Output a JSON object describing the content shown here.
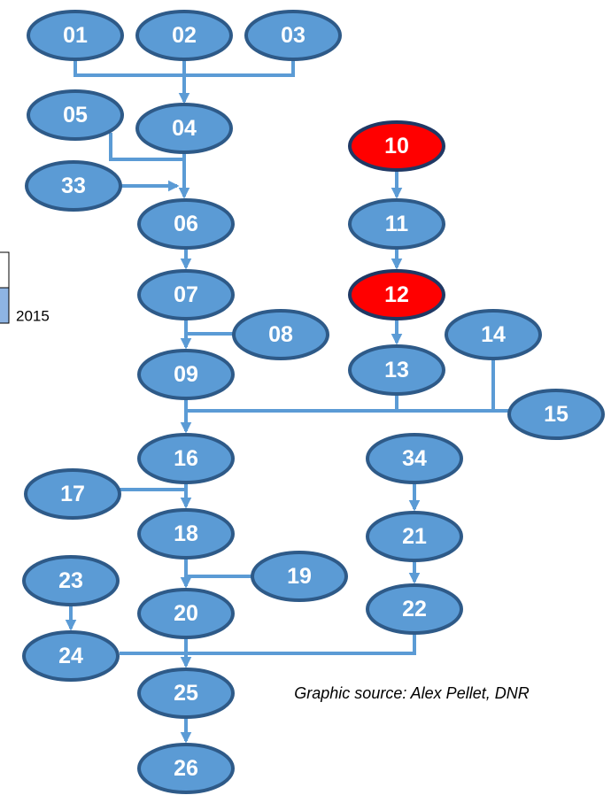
{
  "nodes": [
    {
      "label": "01",
      "highlight": false
    },
    {
      "label": "02",
      "highlight": false
    },
    {
      "label": "03",
      "highlight": false
    },
    {
      "label": "05",
      "highlight": false
    },
    {
      "label": "04",
      "highlight": false
    },
    {
      "label": "33",
      "highlight": false
    },
    {
      "label": "06",
      "highlight": false
    },
    {
      "label": "07",
      "highlight": false
    },
    {
      "label": "08",
      "highlight": false
    },
    {
      "label": "09",
      "highlight": false
    },
    {
      "label": "10",
      "highlight": true
    },
    {
      "label": "11",
      "highlight": false
    },
    {
      "label": "12",
      "highlight": true
    },
    {
      "label": "13",
      "highlight": false
    },
    {
      "label": "14",
      "highlight": false
    },
    {
      "label": "15",
      "highlight": false
    },
    {
      "label": "16",
      "highlight": false
    },
    {
      "label": "34",
      "highlight": false
    },
    {
      "label": "17",
      "highlight": false
    },
    {
      "label": "18",
      "highlight": false
    },
    {
      "label": "21",
      "highlight": false
    },
    {
      "label": "19",
      "highlight": false
    },
    {
      "label": "20",
      "highlight": false
    },
    {
      "label": "22",
      "highlight": false
    },
    {
      "label": "23",
      "highlight": false
    },
    {
      "label": "24",
      "highlight": false
    },
    {
      "label": "25",
      "highlight": false
    },
    {
      "label": "26",
      "highlight": false
    }
  ],
  "year_label": "2015",
  "source": "Graphic source: Alex Pellet, DNR"
}
